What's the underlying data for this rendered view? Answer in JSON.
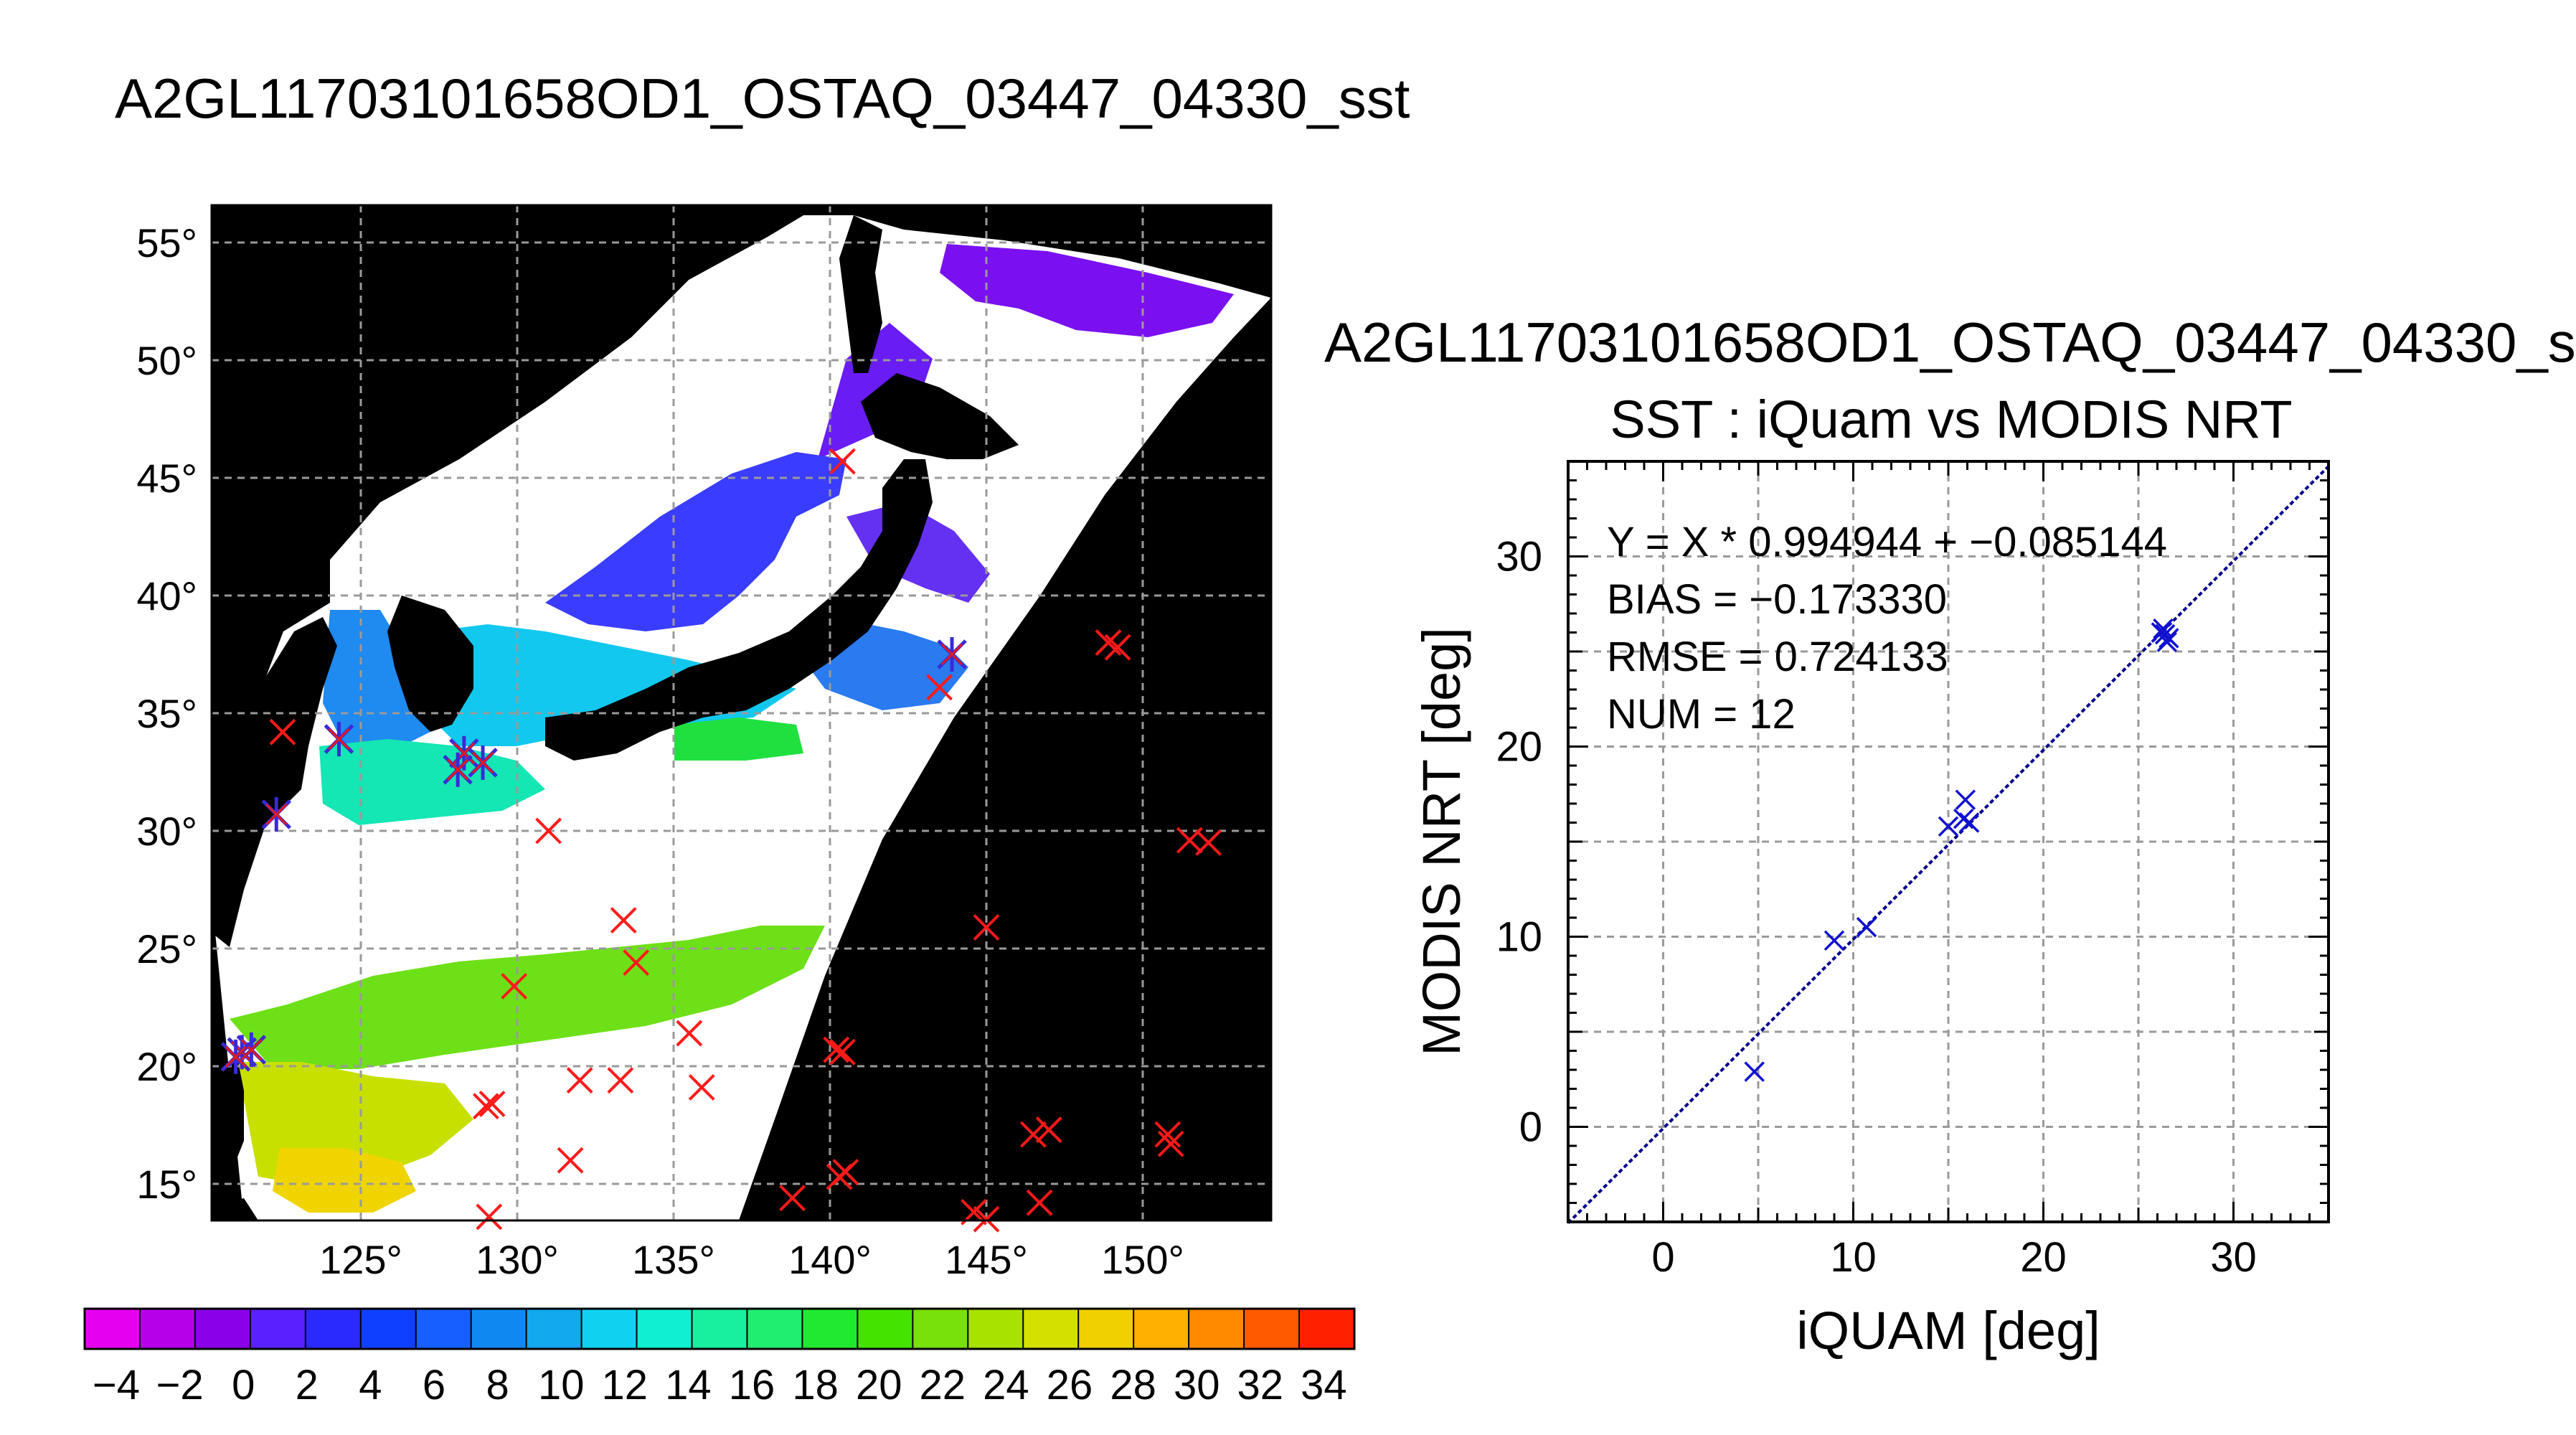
{
  "main_title": "A2GL11703101658OD1_OSTAQ_03447_04330_sst",
  "map": {
    "lat_ticks": [
      "15°",
      "20°",
      "25°",
      "30°",
      "35°",
      "40°",
      "45°",
      "50°",
      "55°"
    ],
    "lon_ticks": [
      "125°",
      "130°",
      "135°",
      "140°",
      "145°",
      "150°"
    ],
    "colorbar_labels": [
      "-4",
      "-2",
      "0",
      "2",
      "4",
      "6",
      "8",
      "10",
      "12",
      "14",
      "16",
      "18",
      "20",
      "22",
      "24",
      "26",
      "28",
      "30",
      "32",
      "34"
    ],
    "colorbar_colors": [
      "#e600f0",
      "#b600e8",
      "#8a00e8",
      "#5a20ff",
      "#2a2aff",
      "#1040ff",
      "#1660ff",
      "#1088f2",
      "#12a9ef",
      "#10d2f0",
      "#10f0d0",
      "#18f0a0",
      "#20ee70",
      "#20ea30",
      "#44e400",
      "#78e00a",
      "#a8e200",
      "#d4e000",
      "#f0d000",
      "#ffb000",
      "#ff8a00",
      "#ff5a00",
      "#ff2000"
    ],
    "iquam_points": [
      {
        "lon": 122.5,
        "lat": 34.2,
        "on_swath": false
      },
      {
        "lon": 124.3,
        "lat": 33.9,
        "on_swath": true
      },
      {
        "lon": 122.3,
        "lat": 30.7,
        "on_swath": true
      },
      {
        "lon": 128.3,
        "lat": 33.3,
        "on_swath": true
      },
      {
        "lon": 128.9,
        "lat": 32.9,
        "on_swath": true
      },
      {
        "lon": 128.1,
        "lat": 32.6,
        "on_swath": true
      },
      {
        "lon": 131.0,
        "lat": 30.0,
        "on_swath": false
      },
      {
        "lon": 140.4,
        "lat": 45.7,
        "on_swath": false
      },
      {
        "lon": 143.9,
        "lat": 37.5,
        "on_swath": true
      },
      {
        "lon": 143.5,
        "lat": 36.1,
        "on_swath": false
      },
      {
        "lon": 148.9,
        "lat": 38.0,
        "on_swath": false
      },
      {
        "lon": 149.2,
        "lat": 37.8,
        "on_swath": false
      },
      {
        "lon": 151.5,
        "lat": 29.6,
        "on_swath": false
      },
      {
        "lon": 152.1,
        "lat": 29.5,
        "on_swath": false
      },
      {
        "lon": 133.4,
        "lat": 26.2,
        "on_swath": false
      },
      {
        "lon": 133.8,
        "lat": 24.4,
        "on_swath": false
      },
      {
        "lon": 129.9,
        "lat": 23.4,
        "on_swath": false
      },
      {
        "lon": 135.5,
        "lat": 21.4,
        "on_swath": false
      },
      {
        "lon": 135.9,
        "lat": 19.1,
        "on_swath": false
      },
      {
        "lon": 145.0,
        "lat": 25.9,
        "on_swath": false
      },
      {
        "lon": 140.2,
        "lat": 20.7,
        "on_swath": false
      },
      {
        "lon": 140.4,
        "lat": 20.6,
        "on_swath": false
      },
      {
        "lon": 132.0,
        "lat": 19.4,
        "on_swath": false
      },
      {
        "lon": 133.3,
        "lat": 19.4,
        "on_swath": false
      },
      {
        "lon": 129.0,
        "lat": 18.3,
        "on_swath": false
      },
      {
        "lon": 129.2,
        "lat": 18.4,
        "on_swath": false
      },
      {
        "lon": 121.2,
        "lat": 20.6,
        "on_swath": true
      },
      {
        "lon": 121.5,
        "lat": 20.7,
        "on_swath": true
      },
      {
        "lon": 121.0,
        "lat": 20.4,
        "on_swath": true
      },
      {
        "lon": 131.7,
        "lat": 16.0,
        "on_swath": false
      },
      {
        "lon": 129.1,
        "lat": 13.6,
        "on_swath": false
      },
      {
        "lon": 138.8,
        "lat": 14.4,
        "on_swath": false
      },
      {
        "lon": 140.3,
        "lat": 15.3,
        "on_swath": false
      },
      {
        "lon": 140.5,
        "lat": 15.5,
        "on_swath": false
      },
      {
        "lon": 144.6,
        "lat": 13.8,
        "on_swath": false
      },
      {
        "lon": 145.0,
        "lat": 13.5,
        "on_swath": false
      },
      {
        "lon": 146.7,
        "lat": 14.2,
        "on_swath": false
      },
      {
        "lon": 146.5,
        "lat": 17.1,
        "on_swath": false
      },
      {
        "lon": 147.0,
        "lat": 17.3,
        "on_swath": false
      },
      {
        "lon": 150.8,
        "lat": 17.1,
        "on_swath": false
      },
      {
        "lon": 150.9,
        "lat": 16.7,
        "on_swath": false
      }
    ]
  },
  "scatter": {
    "subtitle": "A2GL11703101658OD1_OSTAQ_03447_04330_s",
    "title": "SST : iQuam vs MODIS NRT",
    "xlabel": "iQUAM [deg]",
    "ylabel": "MODIS NRT [deg]",
    "x_ticks": [
      "0",
      "10",
      "20",
      "30"
    ],
    "y_ticks": [
      "0",
      "10",
      "20",
      "30"
    ],
    "stats": {
      "fit": "Y = X * 0.994944 + -0.085144",
      "bias": "BIAS = -0.173330",
      "rmse": "RMSE = 0.724133",
      "num": "NUM = 12"
    }
  },
  "chart_data": [
    {
      "type": "scatter",
      "title": "SST : iQuam vs MODIS NRT",
      "xlabel": "iQUAM [deg]",
      "ylabel": "MODIS NRT [deg]",
      "xlim": [
        -5,
        35
      ],
      "ylim": [
        -5,
        35
      ],
      "grid": true,
      "x": [
        4.8,
        9.0,
        10.7,
        15.0,
        15.8,
        15.9,
        16.1,
        26.3,
        26.4,
        26.5,
        26.6,
        26.2
      ],
      "y": [
        2.9,
        9.8,
        10.5,
        15.8,
        16.2,
        17.2,
        16.0,
        26.2,
        25.9,
        25.5,
        25.7,
        26.0
      ],
      "fit_slope": 0.994944,
      "fit_intercept": -0.085144
    }
  ]
}
